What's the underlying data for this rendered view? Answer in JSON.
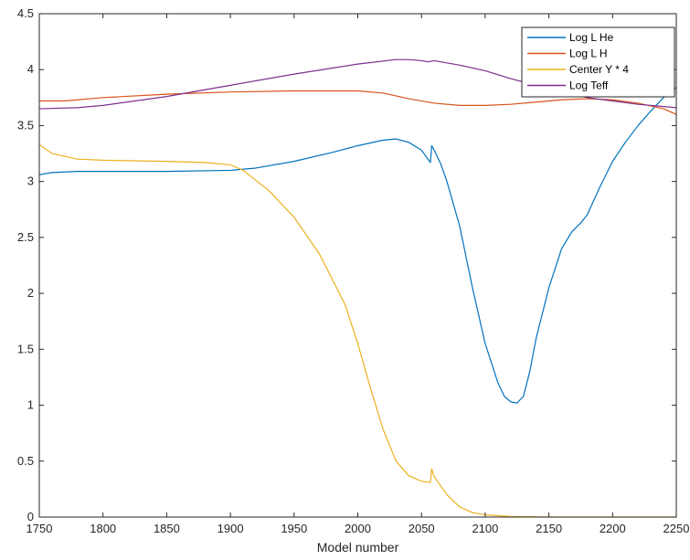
{
  "chart_data": {
    "type": "line",
    "title": "",
    "xlabel": "Model number",
    "ylabel": "",
    "xlim": [
      1750,
      2250
    ],
    "ylim": [
      0,
      4.5
    ],
    "xticks": [
      1750,
      1800,
      1850,
      1900,
      1950,
      2000,
      2050,
      2100,
      2150,
      2200,
      2250
    ],
    "yticks": [
      0,
      0.5,
      1,
      1.5,
      2,
      2.5,
      3,
      3.5,
      4,
      4.5
    ],
    "xtick_labels": [
      "1750",
      "1800",
      "1850",
      "1900",
      "1950",
      "2000",
      "2050",
      "2100",
      "2150",
      "2200",
      "2250"
    ],
    "ytick_labels": [
      "0",
      "0.5",
      "1",
      "1.5",
      "2",
      "2.5",
      "3",
      "3.5",
      "4",
      "4.5"
    ],
    "grid": false,
    "legend_position": "top-right",
    "series": [
      {
        "name": "Log L He",
        "color": "#0072BD",
        "x": [
          1750,
          1760,
          1780,
          1800,
          1850,
          1900,
          1920,
          1950,
          1980,
          2000,
          2020,
          2030,
          2040,
          2050,
          2057,
          2058,
          2060,
          2065,
          2070,
          2080,
          2090,
          2100,
          2110,
          2115,
          2120,
          2125,
          2130,
          2135,
          2140,
          2150,
          2160,
          2168,
          2175,
          2180,
          2190,
          2200,
          2210,
          2220,
          2230,
          2240,
          2250
        ],
        "y": [
          3.06,
          3.08,
          3.09,
          3.09,
          3.09,
          3.1,
          3.12,
          3.18,
          3.26,
          3.32,
          3.37,
          3.38,
          3.35,
          3.28,
          3.17,
          3.32,
          3.28,
          3.16,
          3.0,
          2.6,
          2.05,
          1.55,
          1.2,
          1.08,
          1.03,
          1.02,
          1.08,
          1.3,
          1.6,
          2.05,
          2.4,
          2.55,
          2.63,
          2.7,
          2.95,
          3.18,
          3.35,
          3.5,
          3.63,
          3.75,
          3.84
        ]
      },
      {
        "name": "Log L H",
        "color": "#D95319",
        "x": [
          1750,
          1770,
          1800,
          1850,
          1900,
          1950,
          2000,
          2020,
          2040,
          2060,
          2080,
          2100,
          2120,
          2140,
          2160,
          2180,
          2200,
          2220,
          2240,
          2250
        ],
        "y": [
          3.72,
          3.72,
          3.75,
          3.78,
          3.8,
          3.81,
          3.81,
          3.79,
          3.74,
          3.7,
          3.68,
          3.68,
          3.69,
          3.71,
          3.73,
          3.74,
          3.73,
          3.7,
          3.65,
          3.6
        ]
      },
      {
        "name": "Center Y * 4",
        "color": "#EDB120",
        "x": [
          1750,
          1760,
          1780,
          1800,
          1850,
          1880,
          1900,
          1910,
          1930,
          1950,
          1970,
          1990,
          2000,
          2010,
          2020,
          2030,
          2040,
          2050,
          2057,
          2058,
          2060,
          2070,
          2080,
          2090,
          2100,
          2120,
          2150,
          2200,
          2250
        ],
        "y": [
          3.33,
          3.25,
          3.2,
          3.19,
          3.18,
          3.17,
          3.15,
          3.1,
          2.92,
          2.68,
          2.35,
          1.9,
          1.55,
          1.15,
          0.78,
          0.5,
          0.37,
          0.32,
          0.31,
          0.43,
          0.36,
          0.2,
          0.09,
          0.04,
          0.02,
          0.005,
          0.0,
          0.0,
          0.0
        ]
      },
      {
        "name": "Log Teff",
        "color": "#7E2F8E",
        "x": [
          1750,
          1780,
          1800,
          1850,
          1900,
          1950,
          2000,
          2030,
          2040,
          2050,
          2055,
          2060,
          2080,
          2100,
          2120,
          2140,
          2160,
          2180,
          2200,
          2220,
          2240,
          2250
        ],
        "y": [
          3.65,
          3.66,
          3.68,
          3.76,
          3.86,
          3.96,
          4.05,
          4.09,
          4.09,
          4.08,
          4.07,
          4.08,
          4.04,
          3.99,
          3.92,
          3.86,
          3.8,
          3.75,
          3.72,
          3.69,
          3.67,
          3.66
        ]
      }
    ]
  }
}
